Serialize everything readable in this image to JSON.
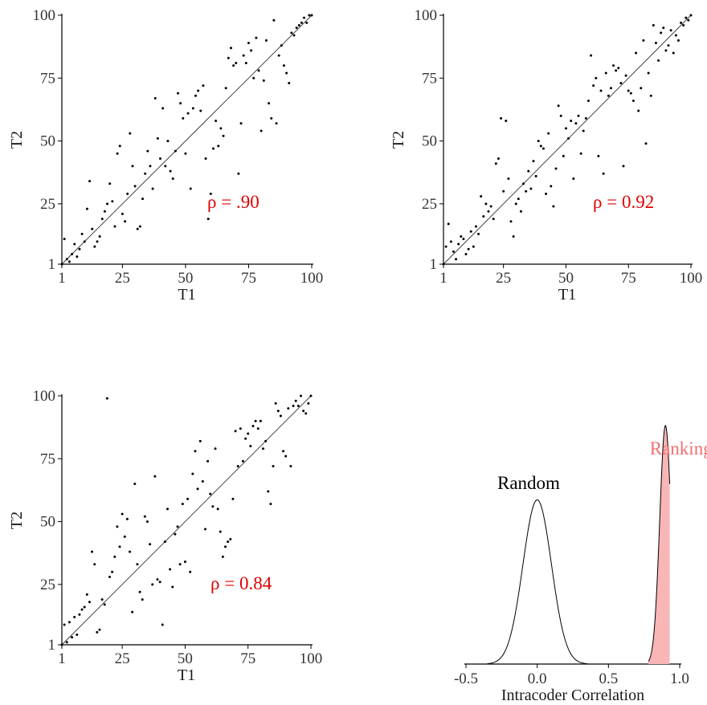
{
  "chart_data": [
    {
      "type": "scatter",
      "xlabel": "T1",
      "ylabel": "T2",
      "xlim": [
        1,
        100
      ],
      "ylim": [
        1,
        100
      ],
      "xticks": [
        "1",
        "25",
        "50",
        "75",
        "100"
      ],
      "yticks": [
        "1",
        "25",
        "50",
        "75",
        "100"
      ],
      "reference_line": "y = x",
      "annotation": "ρ = .90",
      "points": [
        [
          1,
          1
        ],
        [
          2,
          11
        ],
        [
          3,
          3
        ],
        [
          4,
          2
        ],
        [
          5,
          5
        ],
        [
          6,
          9
        ],
        [
          7,
          4
        ],
        [
          8,
          7
        ],
        [
          9,
          13
        ],
        [
          10,
          10
        ],
        [
          11,
          23
        ],
        [
          12,
          34
        ],
        [
          13,
          15
        ],
        [
          14,
          8
        ],
        [
          15,
          10
        ],
        [
          16,
          12
        ],
        [
          17,
          19
        ],
        [
          18,
          22
        ],
        [
          19,
          25
        ],
        [
          20,
          33
        ],
        [
          21,
          26
        ],
        [
          22,
          16
        ],
        [
          23,
          45
        ],
        [
          24,
          48
        ],
        [
          25,
          21
        ],
        [
          26,
          18
        ],
        [
          27,
          29
        ],
        [
          28,
          53
        ],
        [
          29,
          40
        ],
        [
          30,
          32
        ],
        [
          31,
          15
        ],
        [
          32,
          16
        ],
        [
          33,
          27
        ],
        [
          34,
          37
        ],
        [
          35,
          46
        ],
        [
          36,
          40
        ],
        [
          37,
          31
        ],
        [
          38,
          67
        ],
        [
          39,
          51
        ],
        [
          40,
          43
        ],
        [
          41,
          63
        ],
        [
          42,
          40
        ],
        [
          43,
          50
        ],
        [
          44,
          38
        ],
        [
          45,
          35
        ],
        [
          46,
          46
        ],
        [
          47,
          69
        ],
        [
          48,
          65
        ],
        [
          49,
          59
        ],
        [
          50,
          45
        ],
        [
          51,
          61
        ],
        [
          52,
          31
        ],
        [
          53,
          63
        ],
        [
          54,
          68
        ],
        [
          55,
          70
        ],
        [
          56,
          62
        ],
        [
          57,
          72
        ],
        [
          58,
          43
        ],
        [
          59,
          19
        ],
        [
          60,
          29
        ],
        [
          61,
          47
        ],
        [
          62,
          58
        ],
        [
          63,
          48
        ],
        [
          64,
          55
        ],
        [
          65,
          52
        ],
        [
          66,
          71
        ],
        [
          67,
          83
        ],
        [
          68,
          87
        ],
        [
          69,
          80
        ],
        [
          70,
          81
        ],
        [
          71,
          37
        ],
        [
          72,
          57
        ],
        [
          73,
          84
        ],
        [
          74,
          81
        ],
        [
          75,
          89
        ],
        [
          76,
          86
        ],
        [
          77,
          75
        ],
        [
          78,
          91
        ],
        [
          79,
          78
        ],
        [
          80,
          54
        ],
        [
          81,
          74
        ],
        [
          82,
          90
        ],
        [
          83,
          65
        ],
        [
          84,
          59
        ],
        [
          85,
          98
        ],
        [
          86,
          57
        ],
        [
          87,
          84
        ],
        [
          88,
          88
        ],
        [
          89,
          80
        ],
        [
          90,
          77
        ],
        [
          91,
          73
        ],
        [
          92,
          93
        ],
        [
          93,
          92
        ],
        [
          94,
          95
        ],
        [
          95,
          96
        ],
        [
          96,
          97
        ],
        [
          97,
          99
        ],
        [
          98,
          97
        ],
        [
          99,
          100
        ],
        [
          100,
          100
        ]
      ]
    },
    {
      "type": "scatter",
      "xlabel": "T1",
      "ylabel": "T2",
      "xlim": [
        1,
        100
      ],
      "ylim": [
        1,
        100
      ],
      "xticks": [
        "1",
        "25",
        "50",
        "75",
        "100"
      ],
      "yticks": [
        "1",
        "25",
        "50",
        "75",
        "100"
      ],
      "reference_line": "y = x",
      "annotation": "ρ = 0.92",
      "points": [
        [
          1,
          1
        ],
        [
          2,
          8
        ],
        [
          3,
          17
        ],
        [
          4,
          10
        ],
        [
          5,
          6
        ],
        [
          6,
          3
        ],
        [
          7,
          9
        ],
        [
          8,
          12
        ],
        [
          9,
          11
        ],
        [
          10,
          5
        ],
        [
          11,
          7
        ],
        [
          12,
          14
        ],
        [
          13,
          8
        ],
        [
          14,
          16
        ],
        [
          15,
          13
        ],
        [
          16,
          28
        ],
        [
          17,
          20
        ],
        [
          18,
          25
        ],
        [
          19,
          22
        ],
        [
          20,
          24
        ],
        [
          21,
          19
        ],
        [
          22,
          41
        ],
        [
          23,
          43
        ],
        [
          24,
          59
        ],
        [
          25,
          30
        ],
        [
          26,
          58
        ],
        [
          27,
          35
        ],
        [
          28,
          18
        ],
        [
          29,
          12
        ],
        [
          30,
          25
        ],
        [
          31,
          27
        ],
        [
          32,
          22
        ],
        [
          33,
          33
        ],
        [
          34,
          30
        ],
        [
          35,
          38
        ],
        [
          36,
          31
        ],
        [
          37,
          42
        ],
        [
          38,
          36
        ],
        [
          39,
          50
        ],
        [
          40,
          48
        ],
        [
          41,
          47
        ],
        [
          42,
          29
        ],
        [
          43,
          53
        ],
        [
          44,
          32
        ],
        [
          45,
          24
        ],
        [
          46,
          39
        ],
        [
          47,
          64
        ],
        [
          48,
          60
        ],
        [
          49,
          44
        ],
        [
          50,
          55
        ],
        [
          51,
          51
        ],
        [
          52,
          58
        ],
        [
          53,
          35
        ],
        [
          54,
          57
        ],
        [
          55,
          60
        ],
        [
          56,
          45
        ],
        [
          57,
          54
        ],
        [
          58,
          59
        ],
        [
          59,
          66
        ],
        [
          60,
          84
        ],
        [
          61,
          72
        ],
        [
          62,
          75
        ],
        [
          63,
          44
        ],
        [
          64,
          70
        ],
        [
          65,
          37
        ],
        [
          66,
          77
        ],
        [
          67,
          68
        ],
        [
          68,
          71
        ],
        [
          69,
          80
        ],
        [
          70,
          78
        ],
        [
          71,
          79
        ],
        [
          72,
          73
        ],
        [
          73,
          40
        ],
        [
          74,
          76
        ],
        [
          75,
          70
        ],
        [
          76,
          69
        ],
        [
          77,
          66
        ],
        [
          78,
          85
        ],
        [
          79,
          62
        ],
        [
          80,
          71
        ],
        [
          81,
          90
        ],
        [
          82,
          49
        ],
        [
          83,
          77
        ],
        [
          84,
          68
        ],
        [
          85,
          96
        ],
        [
          86,
          89
        ],
        [
          87,
          82
        ],
        [
          88,
          93
        ],
        [
          89,
          95
        ],
        [
          90,
          86
        ],
        [
          91,
          88
        ],
        [
          92,
          94
        ],
        [
          93,
          85
        ],
        [
          94,
          92
        ],
        [
          95,
          90
        ],
        [
          96,
          97
        ],
        [
          97,
          96
        ],
        [
          98,
          99
        ],
        [
          99,
          98
        ],
        [
          100,
          100
        ]
      ]
    },
    {
      "type": "scatter",
      "xlabel": "T1",
      "ylabel": "T2",
      "xlim": [
        1,
        100
      ],
      "ylim": [
        1,
        100
      ],
      "xticks": [
        "1",
        "25",
        "50",
        "75",
        "100"
      ],
      "yticks": [
        "1",
        "25",
        "50",
        "75",
        "100"
      ],
      "reference_line": "y = x",
      "annotation": "ρ = 0.84",
      "points": [
        [
          1,
          1
        ],
        [
          2,
          9
        ],
        [
          3,
          2
        ],
        [
          4,
          10
        ],
        [
          5,
          4
        ],
        [
          6,
          12
        ],
        [
          7,
          5
        ],
        [
          8,
          13
        ],
        [
          9,
          15
        ],
        [
          10,
          16
        ],
        [
          11,
          21
        ],
        [
          12,
          18
        ],
        [
          13,
          38
        ],
        [
          14,
          33
        ],
        [
          15,
          6
        ],
        [
          16,
          7
        ],
        [
          17,
          19
        ],
        [
          18,
          17
        ],
        [
          19,
          99
        ],
        [
          20,
          28
        ],
        [
          21,
          30
        ],
        [
          22,
          36
        ],
        [
          23,
          48
        ],
        [
          24,
          40
        ],
        [
          25,
          53
        ],
        [
          26,
          44
        ],
        [
          27,
          51
        ],
        [
          28,
          38
        ],
        [
          29,
          14
        ],
        [
          30,
          65
        ],
        [
          31,
          33
        ],
        [
          32,
          22
        ],
        [
          33,
          19
        ],
        [
          34,
          52
        ],
        [
          35,
          50
        ],
        [
          36,
          41
        ],
        [
          37,
          25
        ],
        [
          38,
          68
        ],
        [
          39,
          27
        ],
        [
          40,
          26
        ],
        [
          41,
          9
        ],
        [
          42,
          42
        ],
        [
          43,
          55
        ],
        [
          44,
          31
        ],
        [
          45,
          24
        ],
        [
          46,
          45
        ],
        [
          47,
          48
        ],
        [
          48,
          33
        ],
        [
          49,
          57
        ],
        [
          50,
          34
        ],
        [
          51,
          59
        ],
        [
          52,
          30
        ],
        [
          53,
          69
        ],
        [
          54,
          78
        ],
        [
          55,
          63
        ],
        [
          56,
          82
        ],
        [
          57,
          66
        ],
        [
          58,
          47
        ],
        [
          59,
          74
        ],
        [
          60,
          61
        ],
        [
          61,
          56
        ],
        [
          62,
          79
        ],
        [
          63,
          55
        ],
        [
          64,
          46
        ],
        [
          65,
          36
        ],
        [
          66,
          40
        ],
        [
          67,
          42
        ],
        [
          68,
          43
        ],
        [
          69,
          59
        ],
        [
          70,
          86
        ],
        [
          71,
          72
        ],
        [
          72,
          87
        ],
        [
          73,
          74
        ],
        [
          74,
          83
        ],
        [
          75,
          85
        ],
        [
          76,
          80
        ],
        [
          77,
          88
        ],
        [
          78,
          90
        ],
        [
          79,
          87
        ],
        [
          80,
          90
        ],
        [
          81,
          79
        ],
        [
          82,
          82
        ],
        [
          83,
          62
        ],
        [
          84,
          57
        ],
        [
          85,
          72
        ],
        [
          86,
          97
        ],
        [
          87,
          94
        ],
        [
          88,
          92
        ],
        [
          89,
          78
        ],
        [
          90,
          76
        ],
        [
          91,
          95
        ],
        [
          92,
          72
        ],
        [
          93,
          96
        ],
        [
          94,
          98
        ],
        [
          95,
          96
        ],
        [
          96,
          100
        ],
        [
          97,
          94
        ],
        [
          98,
          93
        ],
        [
          99,
          97
        ],
        [
          100,
          100
        ]
      ]
    },
    {
      "type": "area",
      "xlabel": "Intracoder Correlation",
      "xlim": [
        -0.5,
        1.0
      ],
      "xticks": [
        "-0.5",
        "0.0",
        "0.5",
        "1.0"
      ],
      "series": [
        {
          "name": "Random",
          "mean": 0.0,
          "sd": 0.1,
          "range": [
            -0.35,
            0.35
          ],
          "peak_height": 0.62,
          "fill": "none",
          "stroke": "#000000",
          "label_color": "#000000"
        },
        {
          "name": "Ranking",
          "mean": 0.9,
          "sd": 0.04,
          "range": [
            0.78,
            0.93
          ],
          "peak_height": 0.9,
          "fill": "#f9b6b6",
          "stroke": "#000000",
          "label_color": "#f26f6f"
        }
      ]
    }
  ]
}
